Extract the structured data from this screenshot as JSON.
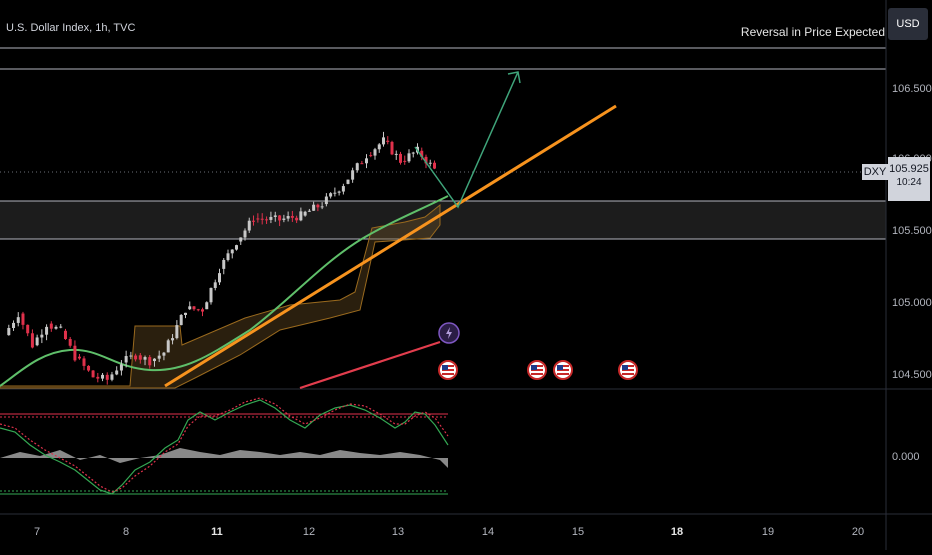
{
  "header": {
    "title": "U.S. Dollar Index, 1h, TVC",
    "idea_title": "Reversal in Price Expected",
    "currency_button": "USD"
  },
  "price_scale": {
    "labels": [
      "106.500",
      "106.000",
      "105.500",
      "105.000",
      "104.500"
    ],
    "symbol_tag": "DXY",
    "current_price": "105.925",
    "countdown": "10:24"
  },
  "oscillator_scale": {
    "label": "0.000"
  },
  "time_axis": {
    "labels": [
      {
        "text": "7",
        "bold": false
      },
      {
        "text": "8",
        "bold": false
      },
      {
        "text": "11",
        "bold": true
      },
      {
        "text": "12",
        "bold": false
      },
      {
        "text": "13",
        "bold": false
      },
      {
        "text": "14",
        "bold": false
      },
      {
        "text": "15",
        "bold": false
      },
      {
        "text": "18",
        "bold": true
      },
      {
        "text": "19",
        "bold": false
      },
      {
        "text": "20",
        "bold": false
      }
    ]
  },
  "colors": {
    "background": "#000000",
    "bull_candle": "#c8c8c8",
    "bear_candle": "#e0314b",
    "trendline": "#f7931e",
    "ma_green": "#5fbf6a",
    "ma_red": "#e23d4d",
    "cloud": "#9a6a1e",
    "arrow": "#3fa47a",
    "zone": "#1c1c1c"
  },
  "event_icons": [
    "flag-us-icon",
    "flag-us-icon",
    "flag-us-icon",
    "flag-us-icon",
    "lightning-icon"
  ],
  "chart_data": {
    "type": "candlestick",
    "title": "U.S. Dollar Index, 1h, TVC",
    "symbol": "DXY",
    "x_ticks": [
      "7",
      "8",
      "11",
      "12",
      "13",
      "14",
      "15",
      "18",
      "19",
      "20"
    ],
    "ylim": [
      104.4,
      106.8
    ],
    "price_levels_marked": [
      106.55,
      106.47,
      105.72,
      105.53
    ],
    "path": [
      {
        "x": "7",
        "y": 104.77
      },
      {
        "x": "7",
        "y": 104.92
      },
      {
        "x": "7",
        "y": 104.7
      },
      {
        "x": "7",
        "y": 104.85
      },
      {
        "x": "7",
        "y": 104.8
      },
      {
        "x": "7",
        "y": 104.62
      },
      {
        "x": "8",
        "y": 104.48
      },
      {
        "x": "8",
        "y": 104.46
      },
      {
        "x": "8",
        "y": 104.58
      },
      {
        "x": "8",
        "y": 104.63
      },
      {
        "x": "8",
        "y": 104.59
      },
      {
        "x": "8",
        "y": 104.65
      },
      {
        "x": "11",
        "y": 104.95
      },
      {
        "x": "11",
        "y": 104.95
      },
      {
        "x": "11",
        "y": 105.23
      },
      {
        "x": "11",
        "y": 105.42
      },
      {
        "x": "11",
        "y": 105.58
      },
      {
        "x": "12",
        "y": 105.57
      },
      {
        "x": "12",
        "y": 105.6
      },
      {
        "x": "12",
        "y": 105.68
      },
      {
        "x": "12",
        "y": 105.82
      },
      {
        "x": "13",
        "y": 106.02
      },
      {
        "x": "13",
        "y": 106.12
      },
      {
        "x": "13",
        "y": 105.98
      },
      {
        "x": "13",
        "y": 106.05
      },
      {
        "x": "13",
        "y": 105.92
      }
    ],
    "indicators": {
      "green_ma": [
        {
          "x": "7",
          "y": 104.52
        },
        {
          "x": "8",
          "y": 104.75
        },
        {
          "x": "8",
          "y": 104.72
        },
        {
          "x": "11",
          "y": 104.85
        },
        {
          "x": "12",
          "y": 105.35
        },
        {
          "x": "13",
          "y": 105.62
        },
        {
          "x": "13",
          "y": 105.7
        }
      ],
      "red_ma": [
        {
          "x": "11",
          "y": 104.5
        },
        {
          "x": "12",
          "y": 104.63
        },
        {
          "x": "13",
          "y": 104.75
        }
      ]
    },
    "drawings": {
      "trendline": [
        {
          "x": "8",
          "y": 104.5
        },
        {
          "x": "14",
          "y": 106.38
        }
      ],
      "projected_arrow": [
        {
          "x": "13",
          "y": 105.72
        },
        {
          "x": "14",
          "y": 106.7
        }
      ]
    }
  }
}
